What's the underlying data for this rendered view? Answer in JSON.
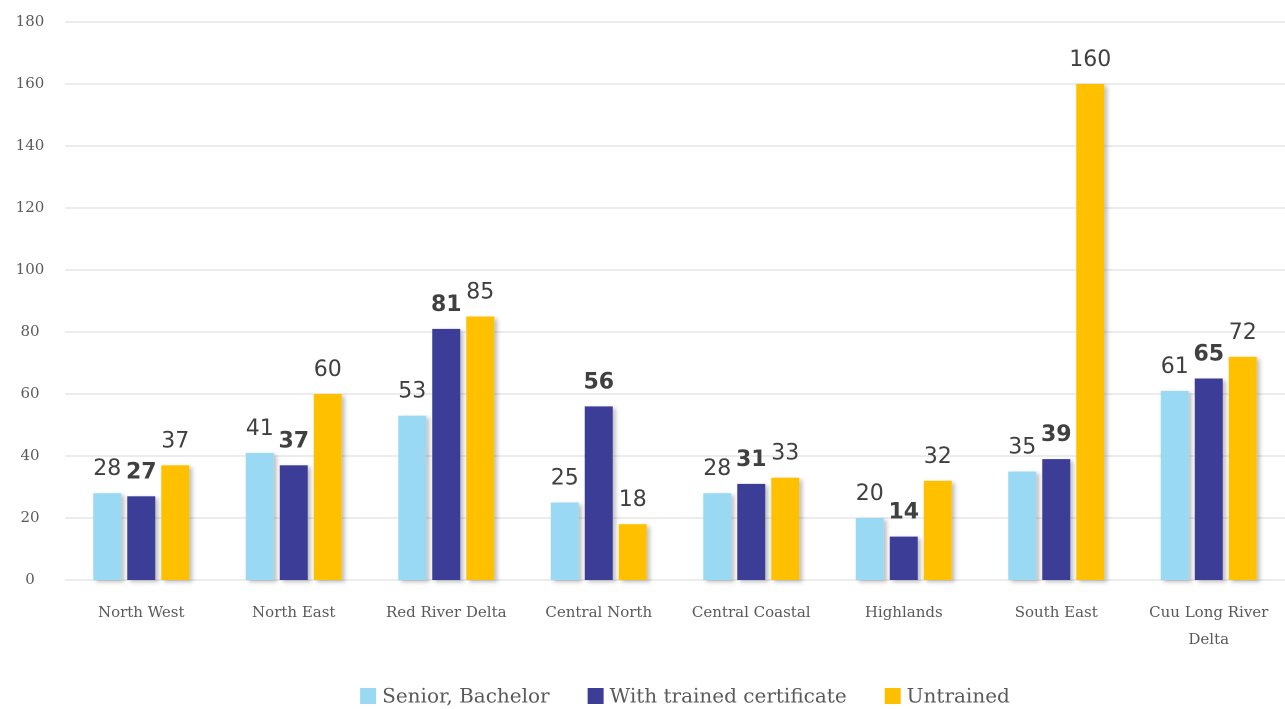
{
  "chart_data": {
    "type": "bar",
    "categories": [
      "North West",
      "North East",
      "Red River Delta",
      "Central North",
      "Central Coastal",
      "Highlands",
      "South East",
      "Cuu Long River Delta"
    ],
    "series": [
      {
        "name": "Senior, Bachelor",
        "color": "#99d9f3",
        "values": [
          28,
          41,
          53,
          25,
          28,
          20,
          35,
          61
        ]
      },
      {
        "name": "With trained certificate",
        "color": "#3b3d96",
        "values": [
          27,
          37,
          81,
          56,
          31,
          14,
          39,
          65
        ]
      },
      {
        "name": "Untrained",
        "color": "#ffc000",
        "values": [
          37,
          60,
          85,
          18,
          33,
          32,
          160,
          72
        ]
      }
    ],
    "ylim": [
      0,
      180
    ],
    "yticks": [
      0,
      20,
      40,
      60,
      80,
      100,
      120,
      140,
      160,
      180
    ],
    "grid": true,
    "legend": "bottom"
  }
}
